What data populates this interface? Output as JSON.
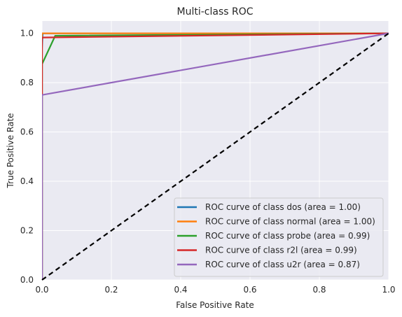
{
  "chart_data": {
    "type": "line",
    "title": "Multi-class ROC",
    "xlabel": "False Positive Rate",
    "ylabel": "True Positive Rate",
    "xlim": [
      0.0,
      1.0
    ],
    "ylim": [
      0.0,
      1.05
    ],
    "xticks": [
      0.0,
      0.2,
      0.4,
      0.6,
      0.8,
      1.0
    ],
    "yticks": [
      0.0,
      0.2,
      0.4,
      0.6,
      0.8,
      1.0
    ],
    "xtick_labels": [
      "0.0",
      "0.2",
      "0.4",
      "0.6",
      "0.8",
      "1.0"
    ],
    "ytick_labels": [
      "0.0",
      "0.2",
      "0.4",
      "0.6",
      "0.8",
      "1.0"
    ],
    "grid": true,
    "legend_position": "lower-right",
    "background_color": "#eaeaf2",
    "series": [
      {
        "name": "ROC curve of class dos (area = 1.00)",
        "color": "#1f77b4",
        "x": [
          0.0,
          0.0,
          0.002,
          1.0
        ],
        "y": [
          0.0,
          0.94,
          1.0,
          1.0
        ]
      },
      {
        "name": "ROC curve of class normal (area = 1.00)",
        "color": "#ff7f0e",
        "x": [
          0.0,
          0.0,
          1.0
        ],
        "y": [
          0.0,
          1.0,
          1.0
        ]
      },
      {
        "name": "ROC curve of class probe (area = 0.99)",
        "color": "#2ca02c",
        "x": [
          0.0,
          0.0,
          0.038,
          1.0
        ],
        "y": [
          0.0,
          0.875,
          0.99,
          1.0
        ]
      },
      {
        "name": "ROC curve of class r2l (area = 0.99)",
        "color": "#d62728",
        "x": [
          0.0,
          0.0,
          1.0
        ],
        "y": [
          0.0,
          0.983,
          1.0
        ]
      },
      {
        "name": "ROC curve of class u2r (area = 0.87)",
        "color": "#9467bd",
        "x": [
          0.0,
          0.0,
          1.0
        ],
        "y": [
          0.0,
          0.75,
          1.0
        ]
      }
    ],
    "reference_line": {
      "style": "dashed",
      "color": "#000000",
      "x": [
        0.0,
        1.0
      ],
      "y": [
        0.0,
        1.0
      ]
    }
  }
}
